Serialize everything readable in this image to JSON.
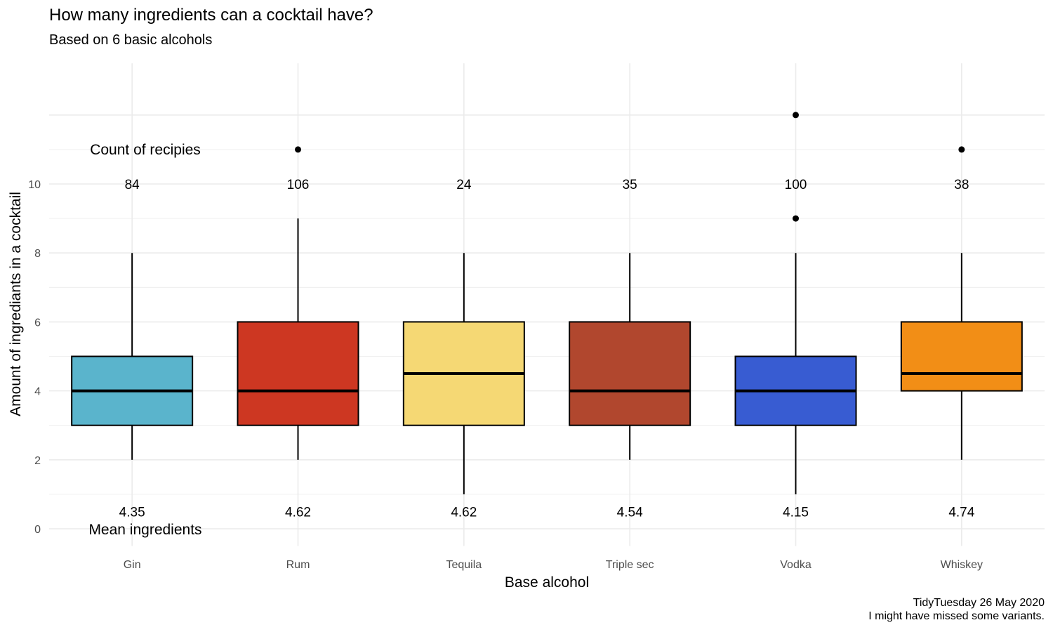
{
  "title": "How many ingredients can a cocktail have?",
  "subtitle": "Based on 6 basic alcohols",
  "caption": [
    "TidyTuesday 26 May 2020",
    "I might have missed some variants."
  ],
  "chart_data": {
    "type": "boxplot",
    "xlabel": "Base alcohol",
    "ylabel": "Amount of ingrediants in a cocktail",
    "ylim": [
      0,
      12
    ],
    "yticks": [
      0,
      2,
      4,
      6,
      8,
      10
    ],
    "grid": true,
    "count_label": "Count of recipies",
    "mean_label": "Mean ingredients",
    "categories": [
      "Gin",
      "Rum",
      "Tequila",
      "Triple sec",
      "Vodka",
      "Whiskey"
    ],
    "series": [
      {
        "category": "Gin",
        "color": "#5AB4CC",
        "whisker_low": 2,
        "q1": 3,
        "median": 4,
        "q3": 5,
        "whisker_high": 8,
        "outliers": [],
        "count": "84",
        "mean": "4.35"
      },
      {
        "category": "Rum",
        "color": "#CD3722",
        "whisker_low": 2,
        "q1": 3,
        "median": 4,
        "q3": 6,
        "whisker_high": 9,
        "outliers": [
          11
        ],
        "count": "106",
        "mean": "4.62"
      },
      {
        "category": "Tequila",
        "color": "#F5D874",
        "whisker_low": 1,
        "q1": 3,
        "median": 4.5,
        "q3": 6,
        "whisker_high": 8,
        "outliers": [],
        "count": "24",
        "mean": "4.62"
      },
      {
        "category": "Triple sec",
        "color": "#B1472E",
        "whisker_low": 2,
        "q1": 3,
        "median": 4,
        "q3": 6,
        "whisker_high": 8,
        "outliers": [],
        "count": "35",
        "mean": "4.54"
      },
      {
        "category": "Vodka",
        "color": "#385CD2",
        "whisker_low": 1,
        "q1": 3,
        "median": 4,
        "q3": 5,
        "whisker_high": 8,
        "outliers": [
          9,
          12
        ],
        "count": "100",
        "mean": "4.15"
      },
      {
        "category": "Whiskey",
        "color": "#F28E16",
        "whisker_low": 2,
        "q1": 4,
        "median": 4.5,
        "q3": 6,
        "whisker_high": 8,
        "outliers": [
          11
        ],
        "count": "38",
        "mean": "4.74"
      }
    ]
  }
}
